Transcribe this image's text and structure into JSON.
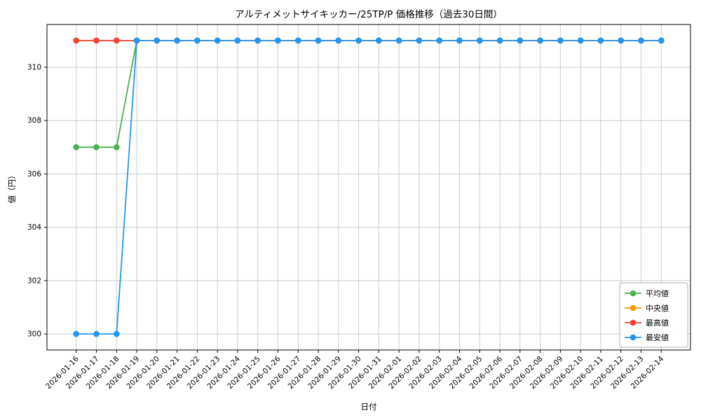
{
  "chart_data": {
    "type": "line",
    "title": "アルティメットサイキッカー/25TP/P 価格推移（過去30日間）",
    "xlabel": "日付",
    "ylabel": "値（円）",
    "categories": [
      "2026-01-16",
      "2026-01-17",
      "2026-01-18",
      "2026-01-19",
      "2026-01-20",
      "2026-01-21",
      "2026-01-22",
      "2026-01-23",
      "2026-01-24",
      "2026-01-25",
      "2026-01-26",
      "2026-01-27",
      "2026-01-28",
      "2026-01-29",
      "2026-01-30",
      "2026-01-31",
      "2026-02-01",
      "2026-02-02",
      "2026-02-03",
      "2026-02-04",
      "2026-02-05",
      "2026-02-06",
      "2026-02-07",
      "2026-02-08",
      "2026-02-09",
      "2026-02-10",
      "2026-02-11",
      "2026-02-12",
      "2026-02-13",
      "2026-02-14"
    ],
    "series": [
      {
        "name": "平均値",
        "color": "#4caf50",
        "values": [
          307,
          307,
          307,
          311,
          311,
          311,
          311,
          311,
          311,
          311,
          311,
          311,
          311,
          311,
          311,
          311,
          311,
          311,
          311,
          311,
          311,
          311,
          311,
          311,
          311,
          311,
          311,
          311,
          311,
          311
        ]
      },
      {
        "name": "中央値",
        "color": "#ff9800",
        "values": [
          311,
          311,
          311,
          311,
          311,
          311,
          311,
          311,
          311,
          311,
          311,
          311,
          311,
          311,
          311,
          311,
          311,
          311,
          311,
          311,
          311,
          311,
          311,
          311,
          311,
          311,
          311,
          311,
          311,
          311
        ]
      },
      {
        "name": "最高値",
        "color": "#f44336",
        "values": [
          311,
          311,
          311,
          311,
          311,
          311,
          311,
          311,
          311,
          311,
          311,
          311,
          311,
          311,
          311,
          311,
          311,
          311,
          311,
          311,
          311,
          311,
          311,
          311,
          311,
          311,
          311,
          311,
          311,
          311
        ]
      },
      {
        "name": "最安値",
        "color": "#2196f3",
        "values": [
          300,
          300,
          300,
          311,
          311,
          311,
          311,
          311,
          311,
          311,
          311,
          311,
          311,
          311,
          311,
          311,
          311,
          311,
          311,
          311,
          311,
          311,
          311,
          311,
          311,
          311,
          311,
          311,
          311,
          311
        ]
      }
    ],
    "ylim": [
      299.4,
      311.6
    ],
    "yticks": [
      300,
      302,
      304,
      306,
      308,
      310
    ],
    "grid": true,
    "legend_position": "lower right",
    "colors": {
      "grid": "#cccccc",
      "spine": "#000000",
      "background": "#ffffff",
      "legend_border": "#b0b0b0"
    }
  }
}
